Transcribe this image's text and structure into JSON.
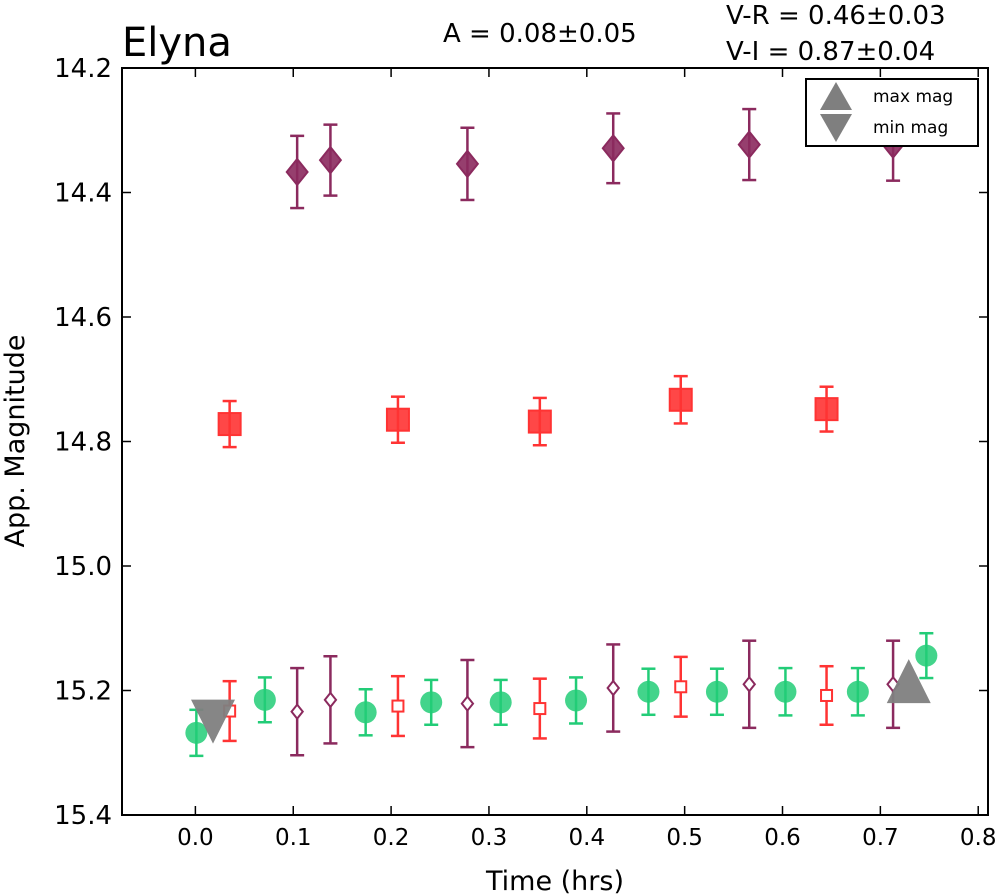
{
  "chart_data": {
    "type": "scatter",
    "title": "Elyna",
    "annotations": {
      "amplitude": "A  = 0.08±0.05",
      "v_r": "V-R = 0.46±0.03",
      "v_i": "V-I  = 0.87±0.04"
    },
    "xlabel": "Time (hrs)",
    "ylabel": "App. Magnitude",
    "xlim": [
      -0.075,
      0.81
    ],
    "ylim": [
      15.4,
      14.2
    ],
    "y_inverted": true,
    "xticks": [
      0.0,
      0.1,
      0.2,
      0.3,
      0.4,
      0.5,
      0.6,
      0.7,
      0.8
    ],
    "xtick_labels": [
      "0.0",
      "0.1",
      "0.2",
      "0.3",
      "0.4",
      "0.5",
      "0.6",
      "0.7",
      "0.8"
    ],
    "yticks": [
      14.2,
      14.4,
      14.6,
      14.8,
      15.0,
      15.2,
      15.4
    ],
    "ytick_labels": [
      "14.2",
      "14.4",
      "14.6",
      "14.8",
      "15.0",
      "15.2",
      "15.4"
    ],
    "grid": false,
    "legend_position": "top-right",
    "legend": [
      {
        "label": "max mag",
        "marker": "triangle-up",
        "color": "#7f7f7f"
      },
      {
        "label": "min mag",
        "marker": "triangle-down",
        "color": "#7f7f7f"
      }
    ],
    "colors": {
      "i_band": "#8b2a5e",
      "r_band": "#ff3333",
      "v_band": "#22cc77",
      "extrema": "#7f7f7f"
    },
    "series": [
      {
        "key": "i_band",
        "marker": "diamond-filled",
        "points": [
          {
            "x": 0.104,
            "y": 14.367,
            "err": 0.058
          },
          {
            "x": 0.138,
            "y": 14.348,
            "err": 0.057
          },
          {
            "x": 0.278,
            "y": 14.354,
            "err": 0.058
          },
          {
            "x": 0.427,
            "y": 14.329,
            "err": 0.056
          },
          {
            "x": 0.566,
            "y": 14.323,
            "err": 0.057
          },
          {
            "x": 0.713,
            "y": 14.323,
            "err": 0.058
          }
        ]
      },
      {
        "key": "r_band",
        "marker": "square-filled",
        "points": [
          {
            "x": 0.035,
            "y": 14.772,
            "err": 0.037
          },
          {
            "x": 0.207,
            "y": 14.765,
            "err": 0.037
          },
          {
            "x": 0.352,
            "y": 14.768,
            "err": 0.038
          },
          {
            "x": 0.496,
            "y": 14.733,
            "err": 0.038
          },
          {
            "x": 0.645,
            "y": 14.748,
            "err": 0.036
          }
        ]
      },
      {
        "key": "v_band",
        "marker": "circle-filled",
        "points": [
          {
            "x": 0.001,
            "y": 15.268,
            "err": 0.037
          },
          {
            "x": 0.071,
            "y": 15.215,
            "err": 0.036
          },
          {
            "x": 0.174,
            "y": 15.235,
            "err": 0.037
          },
          {
            "x": 0.241,
            "y": 15.219,
            "err": 0.036
          },
          {
            "x": 0.312,
            "y": 15.219,
            "err": 0.036
          },
          {
            "x": 0.389,
            "y": 15.216,
            "err": 0.037
          },
          {
            "x": 0.463,
            "y": 15.202,
            "err": 0.037
          },
          {
            "x": 0.533,
            "y": 15.202,
            "err": 0.037
          },
          {
            "x": 0.603,
            "y": 15.202,
            "err": 0.038
          },
          {
            "x": 0.677,
            "y": 15.202,
            "err": 0.038
          },
          {
            "x": 0.747,
            "y": 15.144,
            "err": 0.036
          }
        ]
      },
      {
        "key": "r_band",
        "marker": "square-open",
        "points": [
          {
            "x": 0.035,
            "y": 15.233,
            "err": 0.048
          },
          {
            "x": 0.207,
            "y": 15.225,
            "err": 0.048
          },
          {
            "x": 0.352,
            "y": 15.229,
            "err": 0.048
          },
          {
            "x": 0.496,
            "y": 15.194,
            "err": 0.048
          },
          {
            "x": 0.645,
            "y": 15.208,
            "err": 0.047
          }
        ]
      },
      {
        "key": "i_band",
        "marker": "diamond-open",
        "points": [
          {
            "x": 0.104,
            "y": 15.234,
            "err": 0.07
          },
          {
            "x": 0.138,
            "y": 15.215,
            "err": 0.07
          },
          {
            "x": 0.278,
            "y": 15.221,
            "err": 0.07
          },
          {
            "x": 0.427,
            "y": 15.196,
            "err": 0.07
          },
          {
            "x": 0.566,
            "y": 15.19,
            "err": 0.07
          },
          {
            "x": 0.713,
            "y": 15.19,
            "err": 0.07
          }
        ]
      }
    ],
    "extrema": {
      "max": {
        "x": 0.729,
        "y": 15.185,
        "marker": "triangle-up"
      },
      "min": {
        "x": 0.018,
        "y": 15.25,
        "marker": "triangle-down"
      }
    }
  }
}
